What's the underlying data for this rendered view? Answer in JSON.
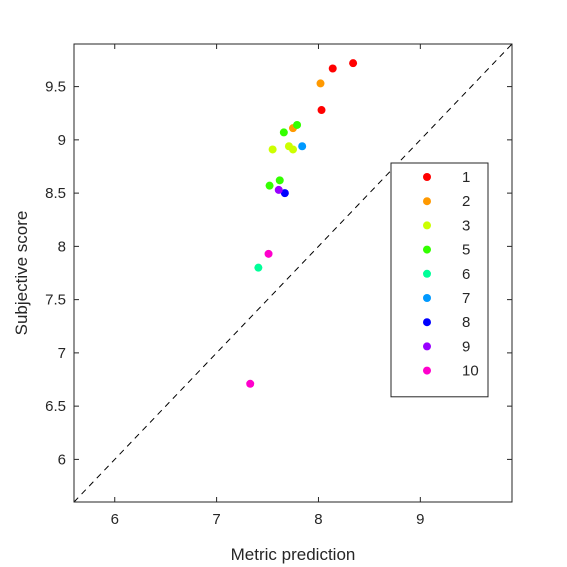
{
  "chart_data": {
    "type": "scatter",
    "title": "",
    "xlabel": "Metric prediction",
    "ylabel": "Subjective score",
    "xlim": [
      5.6,
      9.9
    ],
    "ylim": [
      5.6,
      9.9
    ],
    "xticks": [
      "6",
      "7",
      "8",
      "9"
    ],
    "yticks": [
      "6",
      "6.5",
      "7",
      "7.5",
      "8",
      "8.5",
      "9",
      "9.5"
    ],
    "grid": false,
    "legend_position": "right",
    "diagonal": "y = x dashed reference line",
    "series": [
      {
        "name": "1",
        "color": "#ff0000",
        "points": [
          [
            8.14,
            9.67
          ],
          [
            8.34,
            9.72
          ],
          [
            8.03,
            9.28
          ]
        ]
      },
      {
        "name": "2",
        "color": "#ff9900",
        "points": [
          [
            8.02,
            9.53
          ],
          [
            7.75,
            9.11
          ]
        ]
      },
      {
        "name": "3",
        "color": "#ccff00",
        "points": [
          [
            7.55,
            8.91
          ],
          [
            7.71,
            8.94
          ],
          [
            7.75,
            8.91
          ]
        ]
      },
      {
        "name": "5",
        "color": "#33ff00",
        "points": [
          [
            7.66,
            9.07
          ],
          [
            7.79,
            9.14
          ],
          [
            7.52,
            8.57
          ],
          [
            7.62,
            8.62
          ]
        ]
      },
      {
        "name": "6",
        "color": "#00ff99",
        "points": [
          [
            7.41,
            7.8
          ]
        ]
      },
      {
        "name": "7",
        "color": "#0099ff",
        "points": [
          [
            7.84,
            8.94
          ]
        ]
      },
      {
        "name": "8",
        "color": "#0000ff",
        "points": [
          [
            7.67,
            8.5
          ]
        ]
      },
      {
        "name": "9",
        "color": "#9900ff",
        "points": [
          [
            7.61,
            8.53
          ]
        ]
      },
      {
        "name": "10",
        "color": "#ff00cc",
        "points": [
          [
            7.51,
            7.93
          ],
          [
            7.33,
            6.71
          ]
        ]
      }
    ]
  }
}
